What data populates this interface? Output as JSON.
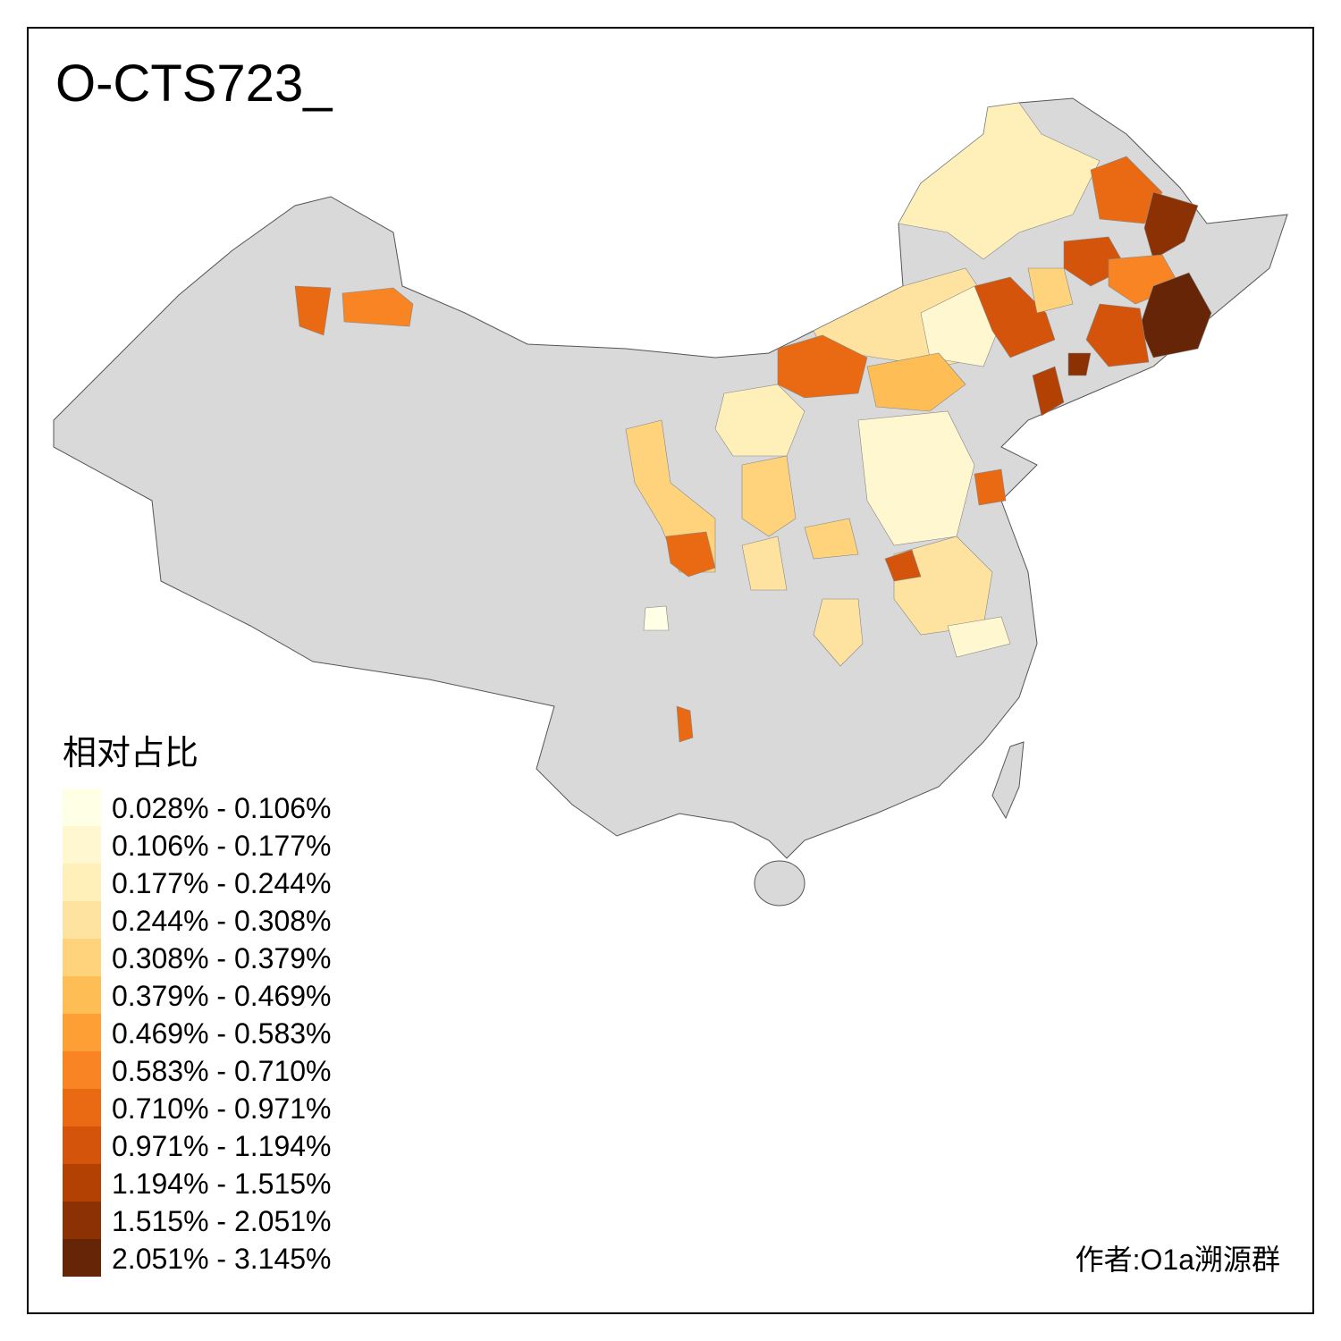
{
  "title": "O-CTS723_",
  "legend": {
    "title": "相对占比",
    "items": [
      {
        "label": "0.028% - 0.106%",
        "color": "#ffffe5"
      },
      {
        "label": "0.106% - 0.177%",
        "color": "#fff7cf"
      },
      {
        "label": "0.177% - 0.244%",
        "color": "#ffefb8"
      },
      {
        "label": "0.244% - 0.308%",
        "color": "#fee3a0"
      },
      {
        "label": "0.308% - 0.379%",
        "color": "#fed37c"
      },
      {
        "label": "0.379% - 0.469%",
        "color": "#febd55"
      },
      {
        "label": "0.469% - 0.583%",
        "color": "#fe9f35"
      },
      {
        "label": "0.583% - 0.710%",
        "color": "#f88424"
      },
      {
        "label": "0.710% - 0.971%",
        "color": "#e96a13"
      },
      {
        "label": "0.971% - 1.194%",
        "color": "#d3540a"
      },
      {
        "label": "1.194% - 1.515%",
        "color": "#b24103"
      },
      {
        "label": "1.515% - 2.051%",
        "color": "#8c3104"
      },
      {
        "label": "2.051% - 3.145%",
        "color": "#662506"
      }
    ]
  },
  "credit": "作者:O1a溯源群"
}
